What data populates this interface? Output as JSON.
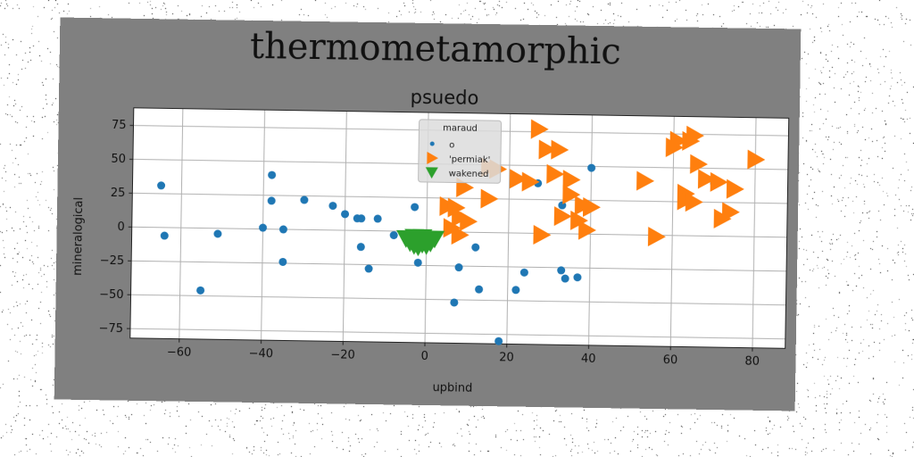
{
  "chart_data": {
    "type": "scatter",
    "suptitle": "thermometamorphic",
    "title": "psuedo",
    "xlabel": "upbind",
    "ylabel": "mineralogical",
    "xlim": [
      -72,
      88
    ],
    "ylim": [
      -82,
      88
    ],
    "xticks": [
      -60,
      -40,
      -20,
      0,
      20,
      40,
      60,
      80
    ],
    "yticks": [
      -75,
      -50,
      -25,
      0,
      25,
      50,
      75
    ],
    "grid": true,
    "legend": {
      "title": "maraud",
      "placement": "top-center"
    },
    "colors": {
      "figure_bg": "#808080",
      "axes_bg": "#ffffff",
      "grid": "#b0b0b0"
    },
    "series": [
      {
        "name": "o",
        "marker": "circle",
        "color": "#1f77b4",
        "points": [
          [
            -65,
            31
          ],
          [
            -64,
            -6
          ],
          [
            -55,
            -46
          ],
          [
            -51,
            -4
          ],
          [
            -38,
            40
          ],
          [
            -38,
            21
          ],
          [
            -40,
            1
          ],
          [
            -35,
            0
          ],
          [
            -35,
            -24
          ],
          [
            -30,
            22
          ],
          [
            -23,
            18
          ],
          [
            -20,
            12
          ],
          [
            -17,
            9
          ],
          [
            -16,
            9
          ],
          [
            -16,
            -12
          ],
          [
            -14,
            -28
          ],
          [
            -12,
            9
          ],
          [
            -8,
            -3
          ],
          [
            -3,
            18
          ],
          [
            -2,
            -23
          ],
          [
            2,
            -5
          ],
          [
            8,
            -26
          ],
          [
            7,
            -52
          ],
          [
            12,
            -11
          ],
          [
            13,
            -42
          ],
          [
            18,
            -80
          ],
          [
            22,
            -42
          ],
          [
            24,
            -29
          ],
          [
            27,
            37
          ],
          [
            33,
            21
          ],
          [
            33,
            -27
          ],
          [
            34,
            -33
          ],
          [
            37,
            -32
          ],
          [
            40,
            49
          ],
          [
            70,
            39
          ]
        ]
      },
      {
        "name": "'permiak'",
        "marker": "triangle-right",
        "color": "#ff7f0e",
        "points": [
          [
            27,
            77
          ],
          [
            29,
            62
          ],
          [
            32,
            62
          ],
          [
            31,
            44
          ],
          [
            35,
            40
          ],
          [
            35,
            29
          ],
          [
            38,
            21
          ],
          [
            40,
            20
          ],
          [
            37,
            10
          ],
          [
            33,
            13
          ],
          [
            28,
            -1
          ],
          [
            39,
            3
          ],
          [
            15,
            25
          ],
          [
            22,
            40
          ],
          [
            25,
            38
          ],
          [
            15,
            48
          ],
          [
            17,
            47
          ],
          [
            9,
            33
          ],
          [
            5,
            19
          ],
          [
            7,
            18
          ],
          [
            8,
            11
          ],
          [
            10,
            8
          ],
          [
            6,
            3
          ],
          [
            8,
            -2
          ],
          [
            53,
            40
          ],
          [
            56,
            -1
          ],
          [
            60,
            65
          ],
          [
            61,
            70
          ],
          [
            64,
            70
          ],
          [
            65,
            74
          ],
          [
            66,
            53
          ],
          [
            63,
            31
          ],
          [
            63,
            26
          ],
          [
            65,
            25
          ],
          [
            68,
            42
          ],
          [
            71,
            40
          ],
          [
            75,
            35
          ],
          [
            74,
            18
          ],
          [
            72,
            13
          ],
          [
            80,
            57
          ]
        ]
      },
      {
        "name": "wakened",
        "marker": "triangle-down",
        "color": "#2ca02c",
        "points": [
          [
            -5,
            -5
          ],
          [
            -4,
            -8
          ],
          [
            -3,
            -10
          ],
          [
            -2,
            -7
          ],
          [
            -1,
            -9
          ],
          [
            0,
            -6
          ],
          [
            1,
            -8
          ],
          [
            2,
            -5
          ],
          [
            -3,
            -4
          ],
          [
            -1,
            -4
          ],
          [
            0,
            -10
          ],
          [
            -2,
            -11
          ]
        ]
      }
    ]
  }
}
